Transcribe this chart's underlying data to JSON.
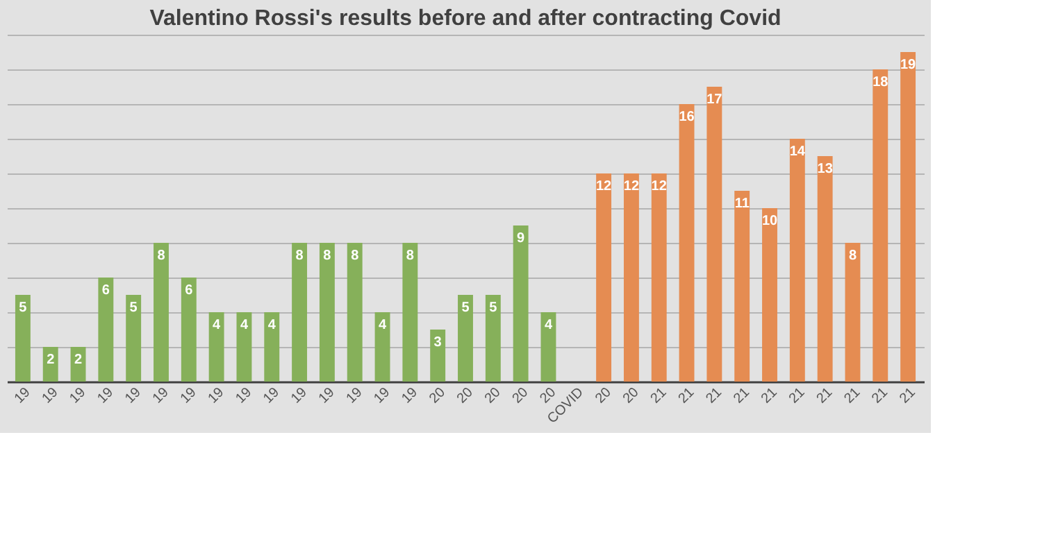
{
  "chart_data": {
    "type": "bar",
    "title": "Valentino Rossi's results before and after contracting Covid",
    "categories": [
      "19",
      "19",
      "19",
      "19",
      "19",
      "19",
      "19",
      "19",
      "19",
      "19",
      "19",
      "19",
      "19",
      "19",
      "19",
      "20",
      "20",
      "20",
      "20",
      "20",
      "COVID",
      "20",
      "20",
      "21",
      "21",
      "21",
      "21",
      "21",
      "21",
      "21",
      "21",
      "21",
      "21"
    ],
    "series": [
      {
        "color": "#86b05a",
        "values": [
          5,
          2,
          2,
          6,
          5,
          8,
          6,
          4,
          4,
          4,
          8,
          8,
          8,
          4,
          8,
          3,
          5,
          5,
          9,
          4,
          null,
          null,
          null,
          null,
          null,
          null,
          null,
          null,
          null,
          null,
          null,
          null,
          null
        ]
      },
      {
        "color": "#e58c52",
        "values": [
          null,
          null,
          null,
          null,
          null,
          null,
          null,
          null,
          null,
          null,
          null,
          null,
          null,
          null,
          null,
          null,
          null,
          null,
          null,
          null,
          null,
          12,
          12,
          12,
          16,
          17,
          11,
          10,
          14,
          13,
          8,
          18,
          19
        ]
      }
    ],
    "ylim": [
      0,
      20
    ],
    "yticks": [
      {
        "value": 0,
        "label": null
      },
      {
        "value": 2,
        "label": null
      },
      {
        "value": 4,
        "label": null
      },
      {
        "value": 6,
        "label": null
      },
      {
        "value": 8,
        "label": null
      },
      {
        "value": 10,
        "label": null
      },
      {
        "value": 12,
        "label": null
      },
      {
        "value": 14,
        "label": null
      },
      {
        "value": 16,
        "label": null
      },
      {
        "value": 18,
        "label": null
      },
      {
        "value": 20,
        "label": null
      }
    ],
    "grid": "y",
    "tick_labels": "x",
    "data_labels": true
  }
}
